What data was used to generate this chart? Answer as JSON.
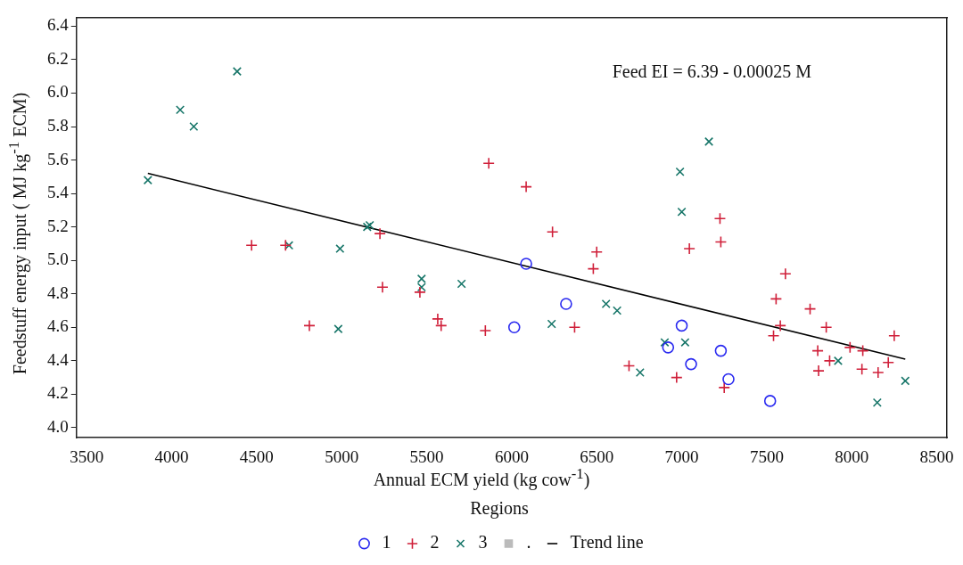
{
  "chart_data": {
    "type": "scatter",
    "xlabel": "Annual ECM yield (kg cow$^{-1}$)",
    "ylabel": "Feedstuff energy input ( MJ kg$^{-1}$ ECM)",
    "legend_title": "Regions",
    "legend": "bottom",
    "grid": false,
    "annotations": [
      "Feed EI = 6.39 - 0.00025 M"
    ],
    "xlim": [
      3440,
      8560
    ],
    "xticks": [
      3500,
      4000,
      4500,
      5000,
      5500,
      6000,
      6500,
      7000,
      7500,
      8000,
      8500
    ],
    "ylim": [
      3.94,
      6.45
    ],
    "yticks": [
      {
        "value": 4,
        "label": "4.0"
      },
      4.2,
      4.4,
      4.6,
      4.8,
      {
        "value": 5,
        "label": "5.0"
      },
      5.2,
      5.4,
      5.6,
      5.8,
      {
        "value": 6,
        "label": "6.0"
      },
      6.2,
      6.4
    ],
    "series": [
      {
        "name": "1",
        "color": "#2a2af0",
        "marker": "circle",
        "x": [
          6085,
          6320,
          6015,
          7000,
          6920,
          7055,
          7230,
          7275,
          7520
        ],
        "values": [
          4.98,
          4.74,
          4.6,
          4.61,
          4.48,
          4.38,
          4.46,
          4.29,
          4.16
        ]
      },
      {
        "name": "2",
        "color": "#d0203a",
        "marker": "cross",
        "x": [
          4470,
          4670,
          4810,
          5225,
          5240,
          5460,
          5565,
          5585,
          5845,
          5865,
          6085,
          6240,
          6370,
          6480,
          6500,
          6690,
          6970,
          7045,
          7225,
          7230,
          7250,
          7540,
          7555,
          7580,
          7610,
          7755,
          7800,
          7805,
          7850,
          7870,
          7990,
          8060,
          8065,
          8155,
          8215,
          8250
        ],
        "values": [
          5.09,
          5.09,
          4.61,
          5.16,
          4.84,
          4.81,
          4.65,
          4.61,
          4.58,
          5.58,
          5.44,
          5.17,
          4.6,
          4.95,
          5.05,
          4.37,
          4.3,
          5.07,
          5.25,
          5.11,
          4.24,
          4.55,
          4.77,
          4.61,
          4.92,
          4.71,
          4.46,
          4.34,
          4.6,
          4.4,
          4.48,
          4.35,
          4.46,
          4.33,
          4.39,
          4.55
        ]
      },
      {
        "name": "3",
        "color": "#167568",
        "marker": "x",
        "x": [
          3860,
          4050,
          4130,
          4385,
          4690,
          4990,
          4980,
          5150,
          5165,
          5470,
          5470,
          5705,
          6235,
          6555,
          6620,
          6900,
          6990,
          7000,
          7020,
          6755,
          7160,
          7920,
          8150,
          8315
        ],
        "values": [
          5.48,
          5.9,
          5.8,
          6.13,
          5.09,
          5.07,
          4.59,
          5.2,
          5.21,
          4.89,
          4.84,
          4.86,
          4.62,
          4.74,
          4.7,
          4.51,
          5.53,
          5.29,
          4.51,
          4.33,
          5.71,
          4.4,
          4.15,
          4.28
        ]
      },
      {
        "name": ".",
        "color": "#bbbbbb",
        "marker": "square"
      },
      {
        "name": "Trend line",
        "type": "line",
        "color": "#000000",
        "marker": "none",
        "line_style": "solid",
        "x": [
          3860,
          8315
        ],
        "values": [
          5.52,
          4.41
        ]
      }
    ]
  }
}
